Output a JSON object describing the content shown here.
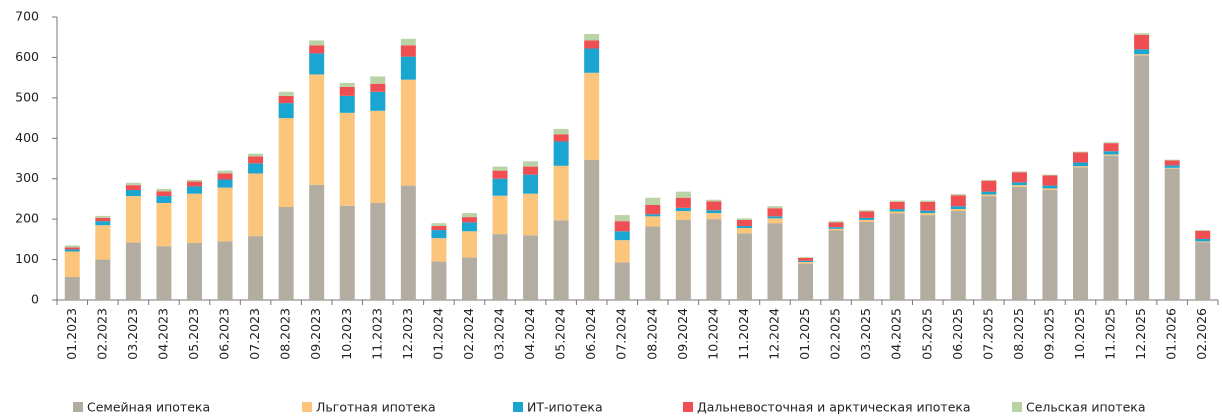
{
  "chart_data": {
    "type": "stacked_bar",
    "categories": [
      "01.2023",
      "02.2023",
      "03.2023",
      "04.2023",
      "05.2023",
      "06.2023",
      "07.2023",
      "08.2023",
      "09.2023",
      "10.2023",
      "11.2023",
      "12.2023",
      "01.2024",
      "02.2024",
      "03.2024",
      "04.2024",
      "05.2024",
      "06.2024",
      "07.2024",
      "08.2024",
      "09.2024",
      "10.2024",
      "11.2024",
      "12.2024",
      "01.2025",
      "02.2025",
      "03.2025",
      "04.2025",
      "05.2025",
      "06.2025",
      "07.2025",
      "08.2025",
      "09.2025",
      "10.2025",
      "11.2025",
      "12.2025",
      "01.2026",
      "02.2026"
    ],
    "series": [
      {
        "name": "Семейная ипотека",
        "color": "#b3aca0",
        "values": [
          57,
          100,
          142,
          133,
          141,
          145,
          158,
          230,
          285,
          233,
          240,
          283,
          95,
          105,
          163,
          160,
          197,
          347,
          93,
          182,
          198,
          200,
          165,
          190,
          90,
          172,
          193,
          214,
          210,
          220,
          257,
          280,
          272,
          328,
          357,
          605,
          325,
          143
        ]
      },
      {
        "name": "Льготная ипотека",
        "color": "#fcc57c",
        "values": [
          63,
          85,
          115,
          107,
          122,
          133,
          155,
          220,
          273,
          230,
          228,
          262,
          58,
          65,
          95,
          103,
          135,
          215,
          55,
          25,
          22,
          15,
          13,
          12,
          4,
          4,
          5,
          5,
          5,
          5,
          4,
          4,
          4,
          3,
          3,
          3,
          2,
          2
        ]
      },
      {
        "name": "ИТ-ипотека",
        "color": "#1aa6d1",
        "values": [
          5,
          10,
          15,
          17,
          18,
          20,
          25,
          37,
          52,
          42,
          47,
          57,
          20,
          22,
          42,
          47,
          60,
          60,
          22,
          5,
          8,
          7,
          5,
          5,
          3,
          4,
          5,
          6,
          6,
          7,
          7,
          7,
          7,
          9,
          8,
          12,
          6,
          6
        ]
      },
      {
        "name": "Дальневосточная и арктическая ипотека",
        "color": "#ef4f52",
        "values": [
          5,
          8,
          12,
          12,
          12,
          15,
          17,
          18,
          20,
          22,
          20,
          28,
          10,
          13,
          20,
          20,
          18,
          20,
          25,
          23,
          25,
          22,
          15,
          20,
          7,
          12,
          16,
          18,
          22,
          27,
          27,
          25,
          25,
          25,
          20,
          36,
          12,
          20
        ]
      },
      {
        "name": "Сельская ипотека",
        "color": "#b9d3a6",
        "values": [
          5,
          5,
          6,
          6,
          4,
          7,
          7,
          10,
          12,
          10,
          18,
          16,
          7,
          10,
          10,
          13,
          13,
          16,
          15,
          18,
          15,
          4,
          4,
          5,
          2,
          3,
          3,
          3,
          3,
          3,
          2,
          2,
          2,
          2,
          2,
          4,
          2,
          2
        ]
      }
    ],
    "ylim": [
      0,
      700
    ],
    "yticks": [
      0,
      100,
      200,
      300,
      400,
      500,
      600,
      700
    ],
    "legend": "bottom"
  }
}
